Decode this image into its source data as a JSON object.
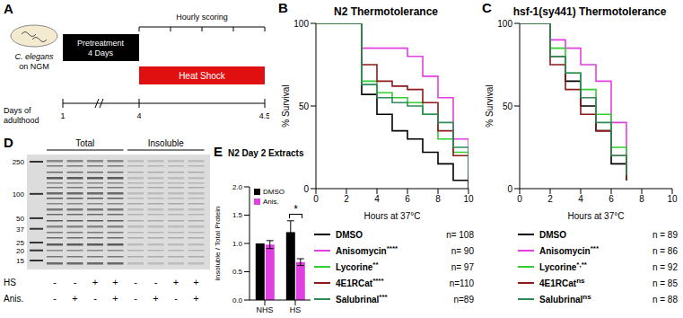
{
  "panel_a": {
    "panel": "A",
    "dish_label": [
      "C. elegans",
      "on NGM"
    ],
    "pretreatment": [
      "Pretreatment",
      "4 Days"
    ],
    "heat_shock": "Heat Shock",
    "scoring": "Hourly scoring",
    "axis_label": [
      "Days of",
      "adulthood"
    ],
    "axis_ticks": [
      1,
      4,
      4.5
    ]
  },
  "chart_data": [
    {
      "panel": "B",
      "type": "line",
      "title": "N2 Thermotolerance",
      "line_style": "step",
      "grid": false,
      "x": [
        0,
        1,
        2,
        3,
        4,
        5,
        6,
        7,
        8,
        9,
        10
      ],
      "xlim": [
        0,
        10
      ],
      "xticks": [
        0,
        2,
        4,
        6,
        8,
        10
      ],
      "ylim": [
        0,
        100
      ],
      "yticks": [
        0,
        50,
        100
      ],
      "xlabel": "Hours at 37°C",
      "ylabel": "% Survival",
      "series": [
        {
          "name": "DMSO",
          "color": "#000000",
          "n_label": "n= 108",
          "values": [
            100,
            100,
            100,
            57,
            45,
            35,
            30,
            22,
            15,
            5,
            0
          ]
        },
        {
          "name": "Anisomycin",
          "significance": "****",
          "color": "#e040e0",
          "n_label": "n= 90",
          "values": [
            100,
            100,
            100,
            85,
            85,
            85,
            80,
            68,
            55,
            30,
            10
          ]
        },
        {
          "name": "Lycorine",
          "significance": "**",
          "color": "#33cc33",
          "n_label": "n= 97",
          "values": [
            100,
            100,
            100,
            65,
            58,
            55,
            52,
            45,
            30,
            22,
            5
          ]
        },
        {
          "name": "4E1RCat",
          "significance": "****",
          "color": "#8b1a1a",
          "n_label": "n=110",
          "values": [
            100,
            100,
            100,
            75,
            65,
            62,
            60,
            52,
            35,
            20,
            5
          ]
        },
        {
          "name": "Salubrinal",
          "significance": "***",
          "color": "#2e8b57",
          "n_label": "n=89",
          "values": [
            100,
            100,
            100,
            63,
            55,
            52,
            50,
            45,
            40,
            25,
            8
          ]
        }
      ]
    },
    {
      "panel": "C",
      "type": "line",
      "title": "hsf-1(sy441) Thermotolerance",
      "line_style": "step",
      "grid": false,
      "x": [
        0,
        1,
        2,
        3,
        4,
        5,
        6,
        7
      ],
      "xlim": [
        0,
        10
      ],
      "xticks": [
        0,
        2,
        4,
        6,
        8,
        10
      ],
      "ylim": [
        0,
        100
      ],
      "yticks": [
        0,
        50,
        100
      ],
      "xlabel": "Hours at 37°C",
      "ylabel": "% Survival",
      "series": [
        {
          "name": "DMSO",
          "color": "#000000",
          "n_label": "n = 89",
          "values": [
            100,
            100,
            80,
            65,
            50,
            35,
            15,
            5
          ]
        },
        {
          "name": "Anisomycin",
          "significance": "***",
          "color": "#e040e0",
          "n_label": "n = 86",
          "values": [
            100,
            100,
            90,
            85,
            75,
            65,
            40,
            15
          ]
        },
        {
          "name": "Lycorine",
          "significance": "*,**",
          "color": "#33cc33",
          "n_label": "n = 92",
          "values": [
            100,
            100,
            85,
            70,
            60,
            45,
            25,
            10
          ]
        },
        {
          "name": "4E1RCat",
          "significance": "ns",
          "color": "#8b1a1a",
          "n_label": "n = 85",
          "values": [
            100,
            100,
            75,
            60,
            45,
            35,
            20,
            5
          ]
        },
        {
          "name": "Salubrinal",
          "significance": "ns",
          "color": "#2e8b57",
          "n_label": "n = 88",
          "values": [
            100,
            100,
            80,
            70,
            55,
            40,
            20,
            8
          ]
        }
      ]
    },
    {
      "panel": "E",
      "type": "bar",
      "title": "N2 Day 2 Extracts",
      "grid": false,
      "legend": "upper left",
      "categories": [
        "NHS",
        "HS"
      ],
      "ylim": [
        0,
        2
      ],
      "yticks": [
        {
          "value": 0,
          "label": "0.0"
        },
        {
          "value": 0.5,
          "label": "0.5"
        },
        {
          "value": 1,
          "label": "1.0"
        },
        {
          "value": 1.5,
          "label": "1.5"
        },
        {
          "value": 2,
          "label": "2.0"
        }
      ],
      "ylabel": "Insoluble / Total Protein",
      "series": [
        {
          "name": "DMSO",
          "color": "#000000",
          "values": [
            1.0,
            1.2
          ],
          "errors": [
            0,
            0.2
          ]
        },
        {
          "name": "Anis.",
          "color": "#e040e0",
          "values": [
            0.98,
            0.67
          ],
          "errors": [
            0.07,
            0.06
          ]
        }
      ],
      "annotations": [
        {
          "text": "*",
          "category": "HS"
        }
      ]
    }
  ],
  "panel_d": {
    "panel": "D",
    "headers": [
      "Total",
      "Insoluble"
    ],
    "markers": [
      250,
      100,
      50,
      37,
      25,
      20,
      15
    ],
    "rows": [
      {
        "label": "HS",
        "signs": [
          "-",
          "-",
          "+",
          "+",
          "-",
          "-",
          "+",
          "+"
        ]
      },
      {
        "label": "Anis.",
        "signs": [
          "-",
          "+",
          "-",
          "+",
          "-",
          "+",
          "-",
          "+"
        ]
      }
    ]
  }
}
